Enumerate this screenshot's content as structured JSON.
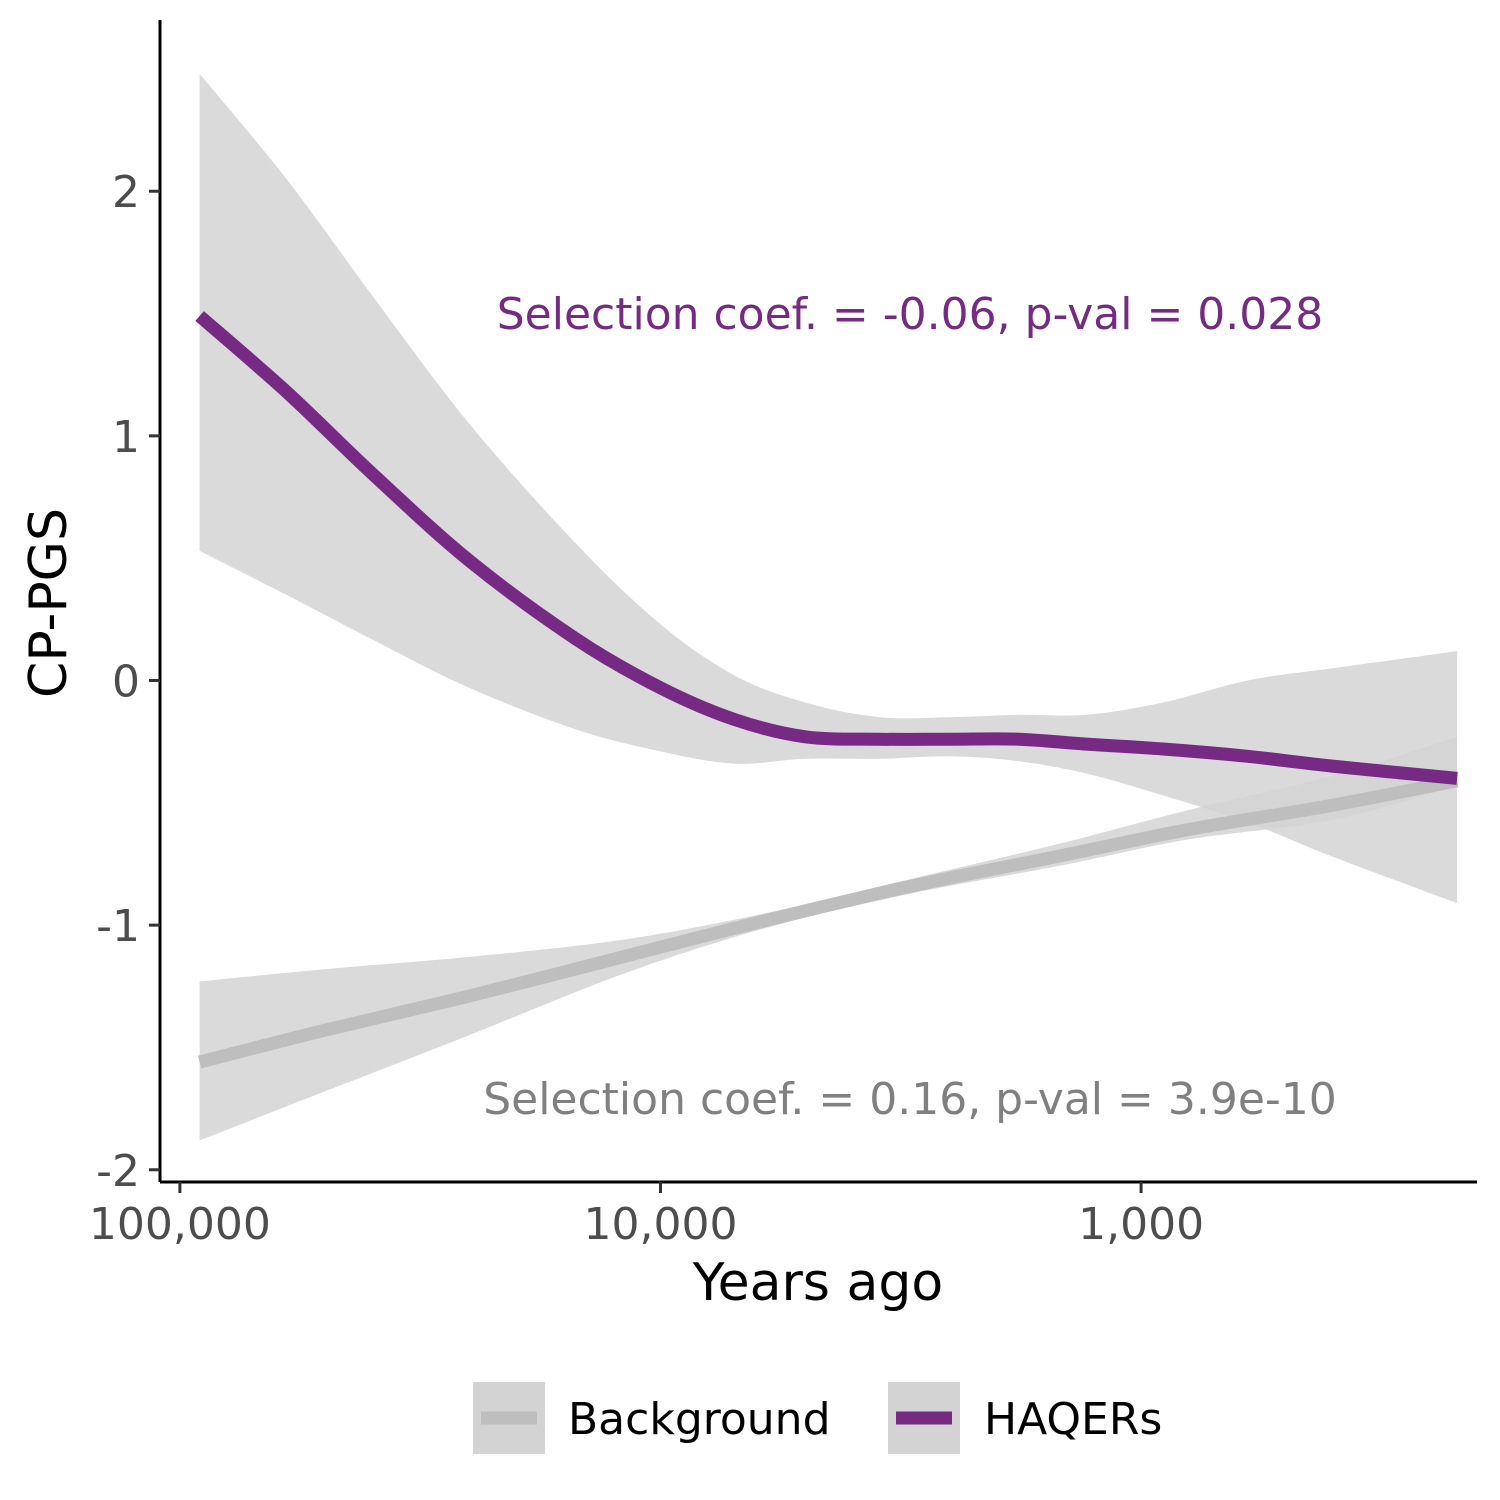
{
  "chart_data": {
    "type": "line",
    "xlabel": "Years ago",
    "ylabel": "CP-PGS",
    "x_scale": "log10, reversed",
    "xlim": [
      110000,
      200
    ],
    "ylim": [
      -2.05,
      2.7
    ],
    "x_ticks": [
      {
        "value": 100000,
        "label": "100,000"
      },
      {
        "value": 10000,
        "label": "10,000"
      },
      {
        "value": 1000,
        "label": "1,000"
      }
    ],
    "y_ticks": [
      {
        "value": 2,
        "label": "2"
      },
      {
        "value": 1,
        "label": "1"
      },
      {
        "value": 0,
        "label": "0"
      },
      {
        "value": -1,
        "label": "-1"
      },
      {
        "value": -2,
        "label": "-2"
      }
    ],
    "grid": false,
    "legend_position": "bottom",
    "series": [
      {
        "name": "Background",
        "color": "#bebebe",
        "band_color": "#d3d3d3",
        "x": [
          91000,
          50000,
          25000,
          12000,
          6000,
          3000,
          1500,
          800,
          400,
          220
        ],
        "y": [
          -1.56,
          -1.43,
          -1.29,
          -1.13,
          -0.98,
          -0.84,
          -0.72,
          -0.61,
          -0.51,
          -0.41
        ],
        "lower": [
          -1.88,
          -1.68,
          -1.45,
          -1.2,
          -1.01,
          -0.87,
          -0.76,
          -0.65,
          -0.57,
          -0.43
        ],
        "upper": [
          -1.23,
          -1.18,
          -1.13,
          -1.06,
          -0.95,
          -0.81,
          -0.67,
          -0.53,
          -0.39,
          -0.23
        ]
      },
      {
        "name": "HAQERs",
        "color": "#762a83",
        "band_color": "#d3d3d3",
        "x": [
          91000,
          60000,
          40000,
          25000,
          15000,
          10000,
          7000,
          5000,
          3500,
          2500,
          1800,
          1300,
          900,
          600,
          400,
          220
        ],
        "y": [
          1.49,
          1.18,
          0.85,
          0.49,
          0.17,
          -0.03,
          -0.16,
          -0.23,
          -0.24,
          -0.24,
          -0.24,
          -0.26,
          -0.28,
          -0.31,
          -0.35,
          -0.4
        ],
        "lower": [
          0.53,
          0.35,
          0.17,
          -0.03,
          -0.2,
          -0.29,
          -0.34,
          -0.32,
          -0.32,
          -0.31,
          -0.33,
          -0.38,
          -0.47,
          -0.58,
          -0.72,
          -0.91
        ],
        "upper": [
          2.48,
          2.05,
          1.58,
          1.05,
          0.56,
          0.23,
          0.02,
          -0.09,
          -0.15,
          -0.15,
          -0.14,
          -0.14,
          -0.09,
          0.0,
          0.05,
          0.12
        ]
      }
    ],
    "annotations": [
      {
        "text": "Selection coef. = -0.06, p-val = 0.028",
        "color": "#762a83",
        "series": "HAQERs"
      },
      {
        "text": "Selection coef. = 0.16, p-val = 3.9e-10",
        "color": "#808080",
        "series": "Background"
      }
    ]
  }
}
